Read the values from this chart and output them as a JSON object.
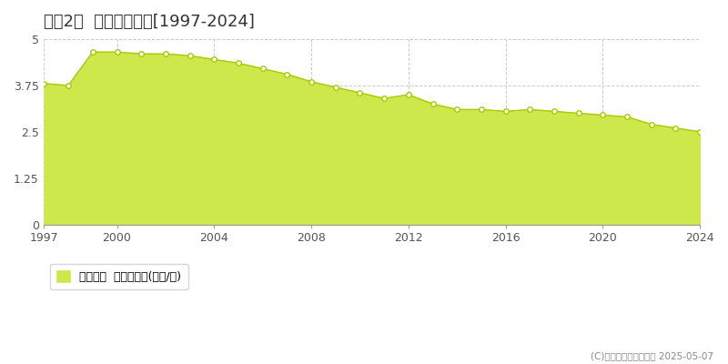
{
  "title": "小莅2村  基準地価推移[1997-2024]",
  "title_display": "小莅2村  基準地価推移[1997-2024]",
  "years": [
    1997,
    1998,
    1999,
    2000,
    2001,
    2002,
    2003,
    2004,
    2005,
    2006,
    2007,
    2008,
    2009,
    2010,
    2011,
    2012,
    2013,
    2014,
    2015,
    2016,
    2017,
    2018,
    2019,
    2020,
    2021,
    2022,
    2023,
    2024
  ],
  "values": [
    3.8,
    3.75,
    4.65,
    4.65,
    4.6,
    4.6,
    4.55,
    4.45,
    4.35,
    4.2,
    4.05,
    3.85,
    3.7,
    3.55,
    3.4,
    3.5,
    3.25,
    3.1,
    3.1,
    3.05,
    3.1,
    3.05,
    3.0,
    2.95,
    2.9,
    2.7,
    2.6,
    2.5
  ],
  "fill_color": "#cde84a",
  "line_color": "#aac800",
  "marker_facecolor": "#ffffff",
  "marker_edgecolor": "#aac800",
  "background_color": "#ffffff",
  "grid_color": "#cccccc",
  "ylim": [
    0,
    5
  ],
  "yticks": [
    0,
    1.25,
    2.5,
    3.75,
    5
  ],
  "ytick_labels": [
    "0",
    "1.25",
    "2.5",
    "3.75",
    "5"
  ],
  "xticks": [
    1997,
    2000,
    2004,
    2008,
    2012,
    2016,
    2020,
    2024
  ],
  "title_fontsize": 13,
  "tick_fontsize": 9,
  "legend_label": "基準地価  平均坪単価(万円/坪)",
  "legend_square_color": "#cde84a",
  "copyright_text": "(C)土地価格ドットコム 2025-05-07"
}
